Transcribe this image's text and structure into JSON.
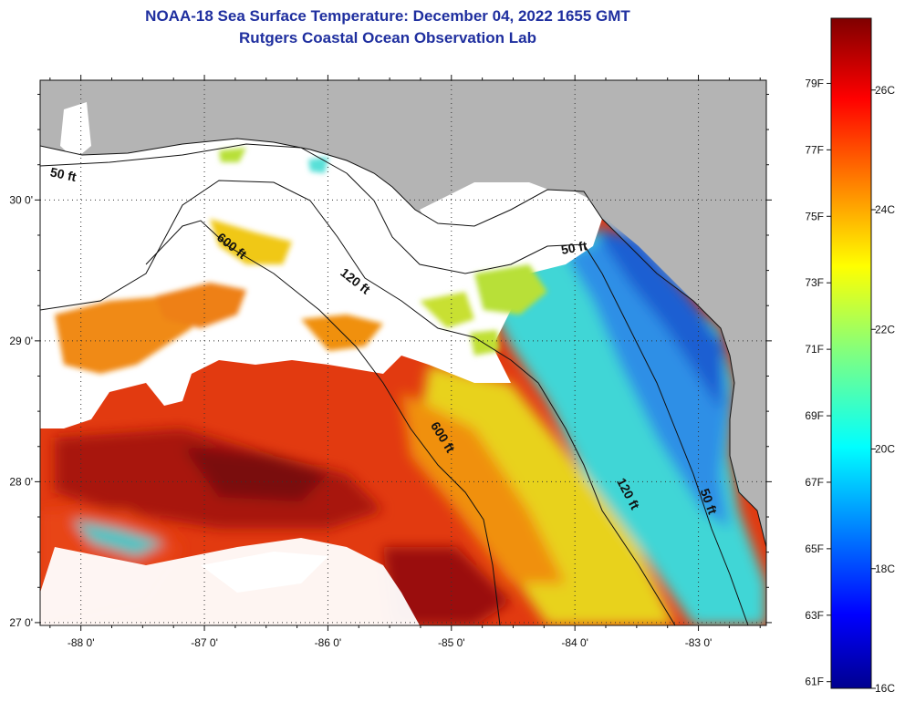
{
  "title": "NOAA-18 Sea Surface Temperature:  December 04, 2022 1655 GMT",
  "subtitle": "Rutgers Coastal Ocean Observation Lab",
  "map": {
    "lon_range": [
      -88.33,
      -82.45
    ],
    "lat_range": [
      26.98,
      30.85
    ],
    "lon_ticks": [
      {
        "value": -88,
        "label": "-88 0'"
      },
      {
        "value": -87,
        "label": "-87 0'"
      },
      {
        "value": -86,
        "label": "-86 0'"
      },
      {
        "value": -85,
        "label": "-85 0'"
      },
      {
        "value": -84,
        "label": "-84 0'"
      },
      {
        "value": -83,
        "label": "-83 0'"
      }
    ],
    "lat_ticks": [
      {
        "value": 30,
        "label": "30 0'"
      },
      {
        "value": 29,
        "label": "29 0'"
      },
      {
        "value": 28,
        "label": "28 0'"
      },
      {
        "value": 27,
        "label": "27 0'"
      }
    ],
    "isobath_labels": [
      {
        "text": "50 ft",
        "lon": -88.15,
        "lat": 30.15
      },
      {
        "text": "600 ft",
        "lon": -86.8,
        "lat": 29.65
      },
      {
        "text": "120 ft",
        "lon": -85.8,
        "lat": 29.4
      },
      {
        "text": "50 ft",
        "lon": -84.0,
        "lat": 29.63
      },
      {
        "text": "600 ft",
        "lon": -85.1,
        "lat": 28.3
      },
      {
        "text": "120 ft",
        "lon": -83.6,
        "lat": 27.9
      },
      {
        "text": "50 ft",
        "lon": -82.95,
        "lat": 27.85
      }
    ],
    "colors": {
      "land": "#b4b4b4",
      "cloud": "#ffffff"
    }
  },
  "colorbar": {
    "min_c": 16,
    "max_c": 27.2,
    "f_labels": [
      "79F",
      "77F",
      "75F",
      "73F",
      "71F",
      "69F",
      "67F",
      "65F",
      "63F",
      "61F"
    ],
    "f_values": [
      79,
      77,
      75,
      73,
      71,
      69,
      67,
      65,
      63,
      61
    ],
    "c_labels": [
      "26C",
      "24C",
      "22C",
      "20C",
      "18C",
      "16C"
    ],
    "c_values": [
      26,
      24,
      22,
      20,
      18,
      16
    ]
  }
}
